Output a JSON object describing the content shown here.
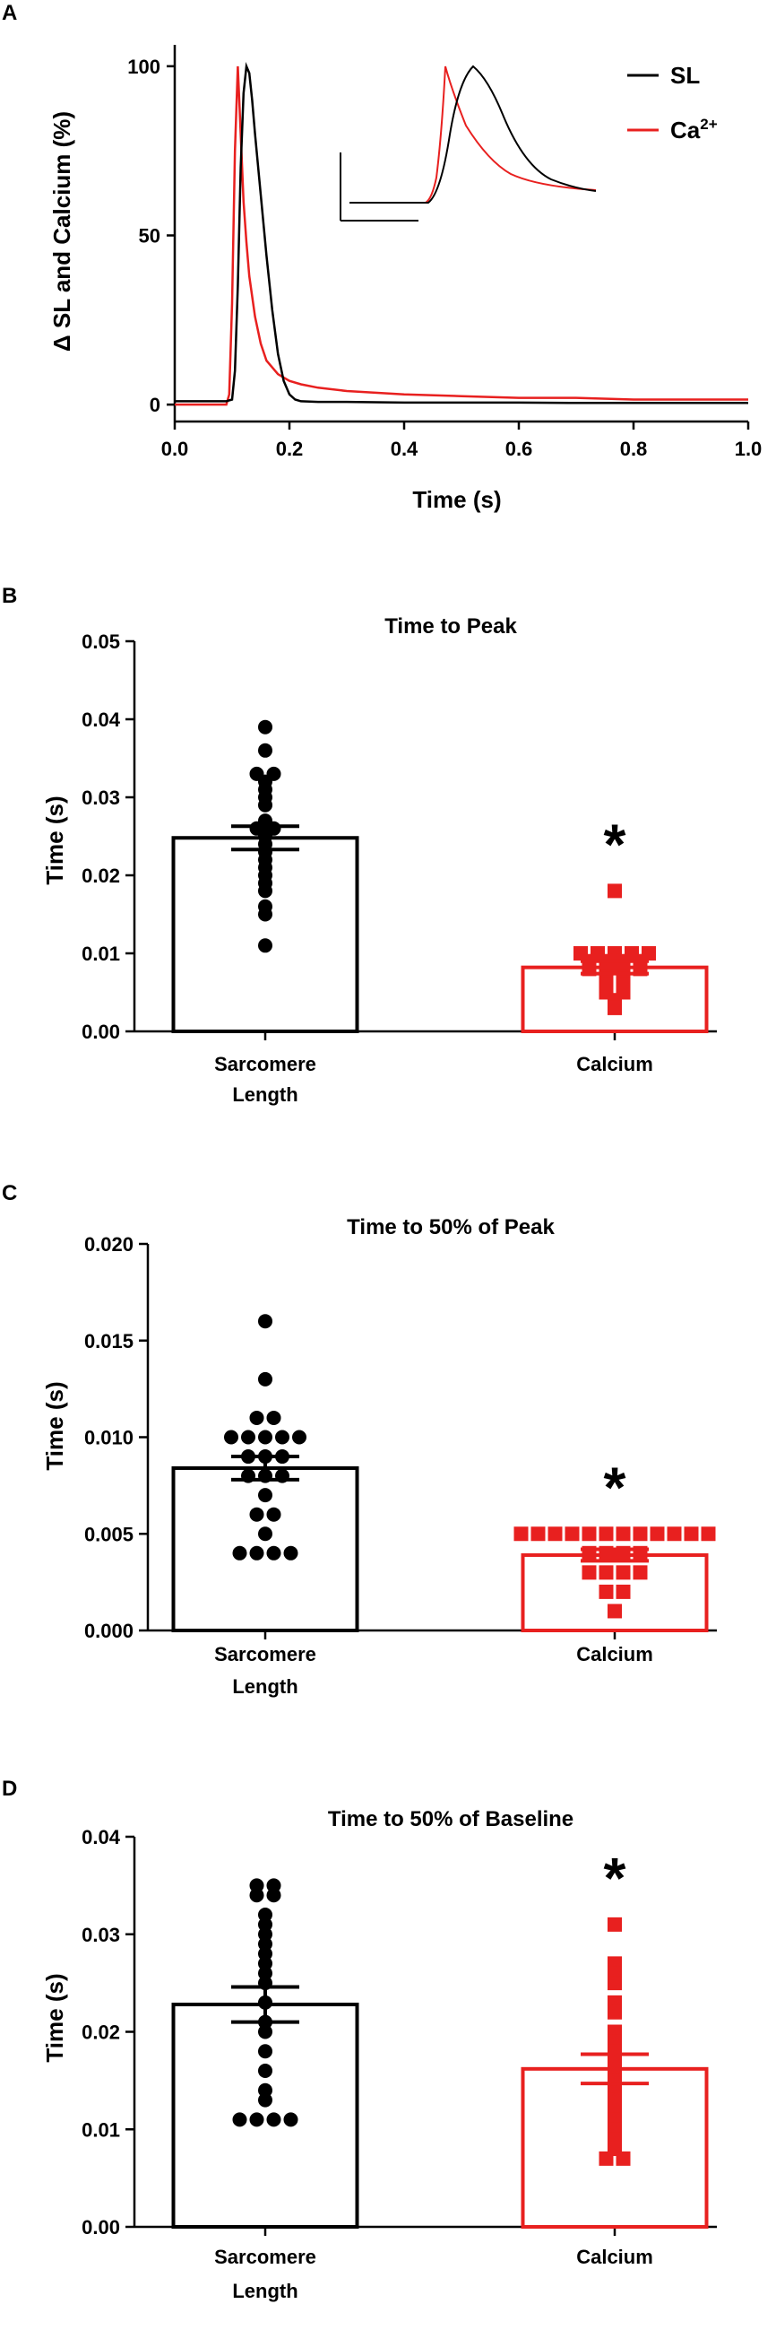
{
  "colors": {
    "sl": "#000000",
    "ca": "#e8201f"
  },
  "chart_data": [
    {
      "panel": "A",
      "type": "line",
      "xlabel": "Time (s)",
      "ylabel": "Δ SL and Calcium (%)",
      "xlim": [
        0,
        1.0
      ],
      "ylim": [
        -5,
        105
      ],
      "xticks": [
        "0.0",
        "0.2",
        "0.4",
        "0.6",
        "0.8",
        "1.0"
      ],
      "yticks": [
        "0",
        "50",
        "100"
      ],
      "legend_position": "top-right",
      "legend": [
        {
          "label": "SL",
          "color": "#000000"
        },
        {
          "label": "Ca",
          "sup": "2+",
          "color": "#e8201f"
        }
      ],
      "series": [
        {
          "name": "SL",
          "color": "#000000",
          "x": [
            0,
            0.08,
            0.09,
            0.1,
            0.105,
            0.11,
            0.115,
            0.12,
            0.125,
            0.13,
            0.135,
            0.14,
            0.15,
            0.16,
            0.17,
            0.18,
            0.19,
            0.2,
            0.21,
            0.22,
            0.25,
            0.3,
            0.4,
            0.5,
            0.6,
            0.7,
            0.8,
            0.9,
            1.0
          ],
          "y": [
            1,
            1,
            1,
            1.5,
            10,
            35,
            70,
            92,
            100,
            98,
            90,
            80,
            62,
            44,
            28,
            15,
            7,
            3,
            1.5,
            1,
            0.8,
            0.8,
            0.6,
            0.6,
            0.6,
            0.5,
            0.5,
            0.5,
            0.5
          ]
        },
        {
          "name": "Ca2+",
          "color": "#e8201f",
          "x": [
            0,
            0.08,
            0.09,
            0.095,
            0.1,
            0.105,
            0.11,
            0.115,
            0.12,
            0.125,
            0.13,
            0.14,
            0.15,
            0.16,
            0.18,
            0.2,
            0.22,
            0.25,
            0.3,
            0.35,
            0.4,
            0.5,
            0.6,
            0.7,
            0.8,
            0.9,
            1.0
          ],
          "y": [
            0,
            0,
            0,
            3,
            30,
            75,
            100,
            80,
            60,
            48,
            38,
            26,
            18,
            13,
            9,
            7,
            6,
            5,
            4,
            3.5,
            3,
            2.5,
            2,
            2,
            1.5,
            1.5,
            1.5
          ]
        }
      ],
      "inset": {
        "description_free": true
      }
    },
    {
      "panel": "B",
      "type": "bar",
      "title": "Time to Peak",
      "ylabel": "Time (s)",
      "ylim": [
        0,
        0.05
      ],
      "yticks": [
        "0.00",
        "0.01",
        "0.02",
        "0.03",
        "0.04",
        "0.05"
      ],
      "categories": [
        {
          "line1": "Sarcomere",
          "line2": "Length"
        },
        {
          "line1": "Calcium",
          "line2": ""
        }
      ],
      "means": [
        0.0248,
        0.0082
      ],
      "sem": [
        0.0015,
        0.0008
      ],
      "significance": "*",
      "points": [
        [
          0.039,
          0.036,
          0.033,
          0.033,
          0.032,
          0.031,
          0.03,
          0.029,
          0.027,
          0.026,
          0.026,
          0.025,
          0.024,
          0.023,
          0.022,
          0.021,
          0.02,
          0.019,
          0.018,
          0.016,
          0.015,
          0.011
        ],
        [
          0.018,
          0.01,
          0.01,
          0.01,
          0.01,
          0.01,
          0.009,
          0.009,
          0.009,
          0.009,
          0.008,
          0.008,
          0.008,
          0.008,
          0.007,
          0.007,
          0.006,
          0.006,
          0.005,
          0.005,
          0.004,
          0.003
        ]
      ]
    },
    {
      "panel": "C",
      "type": "bar",
      "title": "Time to 50% of Peak",
      "ylabel": "Time (s)",
      "ylim": [
        0,
        0.02
      ],
      "yticks": [
        "0.000",
        "0.005",
        "0.010",
        "0.015",
        "0.020"
      ],
      "categories": [
        {
          "line1": "Sarcomere",
          "line2": "Length"
        },
        {
          "line1": "Calcium",
          "line2": ""
        }
      ],
      "means": [
        0.0084,
        0.0039
      ],
      "sem": [
        0.0006,
        0.0003
      ],
      "significance": "*",
      "points": [
        [
          0.016,
          0.013,
          0.011,
          0.011,
          0.01,
          0.01,
          0.01,
          0.01,
          0.01,
          0.009,
          0.009,
          0.009,
          0.008,
          0.008,
          0.008,
          0.007,
          0.006,
          0.006,
          0.005,
          0.004,
          0.004,
          0.004,
          0.004
        ],
        [
          0.005,
          0.005,
          0.005,
          0.005,
          0.005,
          0.005,
          0.005,
          0.005,
          0.005,
          0.005,
          0.005,
          0.005,
          0.004,
          0.004,
          0.004,
          0.004,
          0.003,
          0.003,
          0.003,
          0.003,
          0.002,
          0.002,
          0.001
        ]
      ]
    },
    {
      "panel": "D",
      "type": "bar",
      "title": "Time to 50% of Baseline",
      "ylabel": "Time (s)",
      "ylim": [
        0,
        0.04
      ],
      "yticks": [
        "0.00",
        "0.01",
        "0.02",
        "0.03",
        "0.04"
      ],
      "categories": [
        {
          "line1": "Sarcomere",
          "line2": "Length"
        },
        {
          "line1": "Calcium",
          "line2": ""
        }
      ],
      "means": [
        0.0228,
        0.0162
      ],
      "sem": [
        0.0018,
        0.0015
      ],
      "significance": "*",
      "points": [
        [
          0.035,
          0.035,
          0.034,
          0.034,
          0.032,
          0.031,
          0.03,
          0.029,
          0.028,
          0.027,
          0.026,
          0.025,
          0.023,
          0.021,
          0.02,
          0.018,
          0.016,
          0.014,
          0.013,
          0.011,
          0.011,
          0.011,
          0.011
        ],
        [
          0.031,
          0.027,
          0.026,
          0.025,
          0.023,
          0.022,
          0.02,
          0.019,
          0.018,
          0.017,
          0.016,
          0.015,
          0.014,
          0.013,
          0.012,
          0.011,
          0.01,
          0.009,
          0.008,
          0.007,
          0.007
        ]
      ]
    }
  ]
}
